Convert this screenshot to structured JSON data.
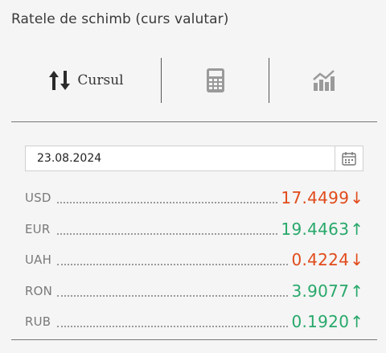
{
  "header": {
    "title": "Ratele de schimb (curs valutar)"
  },
  "tabs": [
    {
      "label": "Cursul",
      "icon": "exchange-arrows-icon",
      "active": true
    },
    {
      "label": "",
      "icon": "calculator-icon",
      "active": false
    },
    {
      "label": "",
      "icon": "chart-icon",
      "active": false
    }
  ],
  "date": {
    "value": "23.08.2024"
  },
  "rates": [
    {
      "code": "USD",
      "value": "17.4499",
      "trend": "↓",
      "direction": "down"
    },
    {
      "code": "EUR",
      "value": "19.4463",
      "trend": "↑",
      "direction": "up"
    },
    {
      "code": "UAH",
      "value": "0.4224",
      "trend": "↓",
      "direction": "down"
    },
    {
      "code": "RON",
      "value": "3.9077",
      "trend": "↑",
      "direction": "up"
    },
    {
      "code": "RUB",
      "value": "0.1920",
      "trend": "↑",
      "direction": "up"
    }
  ],
  "colors": {
    "down": "#e14b1b",
    "up": "#28a86a",
    "icon_gray": "#9a9a9a"
  }
}
